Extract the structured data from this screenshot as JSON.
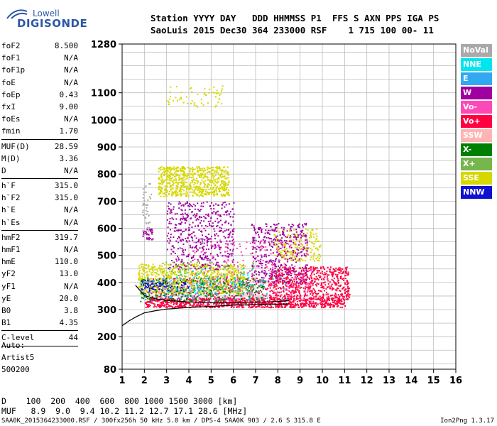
{
  "logo": {
    "brand": "Lowell",
    "name": "DIGISONDE"
  },
  "header": {
    "line1": "Station YYYY DAY   DDD HHMMSS P1  FFS S AXN PPS IGA PS",
    "line2": "SaoLuis 2015 Dec30 364 233000 RSF    1 715 100 00- 11"
  },
  "params_group1": [
    {
      "k": "foF2",
      "v": "8.500"
    },
    {
      "k": "foF1",
      "v": "N/A"
    },
    {
      "k": "foF1p",
      "v": "N/A"
    },
    {
      "k": "foE",
      "v": "N/A"
    },
    {
      "k": "foEp",
      "v": "0.43"
    },
    {
      "k": "fxI",
      "v": "9.00"
    },
    {
      "k": "foEs",
      "v": "N/A"
    },
    {
      "k": "fmin",
      "v": "1.70"
    }
  ],
  "params_group2": [
    {
      "k": "MUF(D)",
      "v": "28.59"
    },
    {
      "k": "M(D)",
      "v": "3.36"
    },
    {
      "k": "D",
      "v": "N/A"
    }
  ],
  "params_group3": [
    {
      "k": "h`F",
      "v": "315.0"
    },
    {
      "k": "h`F2",
      "v": "315.0"
    },
    {
      "k": "h`E",
      "v": "N/A"
    },
    {
      "k": "h`Es",
      "v": "N/A"
    }
  ],
  "params_group4": [
    {
      "k": "hmF2",
      "v": "319.7"
    },
    {
      "k": "hmF1",
      "v": "N/A"
    },
    {
      "k": "hmE",
      "v": "110.0"
    },
    {
      "k": "yF2",
      "v": "13.0"
    },
    {
      "k": "yF1",
      "v": "N/A"
    },
    {
      "k": "yE",
      "v": "20.0"
    },
    {
      "k": "B0",
      "v": "3.8"
    },
    {
      "k": "B1",
      "v": "4.35"
    }
  ],
  "params_group5": [
    {
      "k": "C-level",
      "v": "44"
    }
  ],
  "auto": {
    "l1": "Auto:",
    "l2": "Artist5",
    "l3": "500200"
  },
  "legend": [
    {
      "label": "NoVal",
      "color": "#a9a9a9"
    },
    {
      "label": "NNE",
      "color": "#00e5ef"
    },
    {
      "label": "E",
      "color": "#32a8f0"
    },
    {
      "label": "W",
      "color": "#a000a0"
    },
    {
      "label": "Vo-",
      "color": "#ff48b8"
    },
    {
      "label": "Vo+",
      "color": "#ff0040"
    },
    {
      "label": "SSW",
      "color": "#ffb4b4"
    },
    {
      "label": "X-",
      "color": "#008000"
    },
    {
      "label": "X+",
      "color": "#76b64c"
    },
    {
      "label": "SSE",
      "color": "#d7d700"
    },
    {
      "label": "NNW",
      "color": "#1010d0"
    }
  ],
  "mufline": {
    "d_line": "D    100  200  400  600  800 1000 1500 3000 [km]",
    "muf_line": "MUF   8.9  9.0  9.4 10.2 11.2 12.7 17.1 28.6 [MHz]"
  },
  "footer": {
    "left": "SAA0K_2015364233000.RSF / 300fx256h 50 kHz 5.0 km / DPS-4 SAA0K 903 / 2.6 S 315.8 E",
    "right": "Ion2Png 1.3.17"
  },
  "chart_data": {
    "type": "scatter",
    "xlim": [
      1,
      16
    ],
    "ylim": [
      80,
      1280
    ],
    "xticks": [
      1,
      2,
      3,
      4,
      5,
      6,
      7,
      8,
      9,
      10,
      11,
      12,
      13,
      14,
      15,
      16
    ],
    "yticks": [
      80,
      200,
      300,
      400,
      500,
      600,
      700,
      800,
      900,
      1000,
      1100,
      1280
    ],
    "grid": true,
    "regions": [
      {
        "color": "#ff0040",
        "x": [
          2.0,
          11.0
        ],
        "y": [
          310,
          345
        ],
        "n": 900
      },
      {
        "color": "#ff0040",
        "x": [
          7.6,
          11.2
        ],
        "y": [
          340,
          460
        ],
        "n": 600
      },
      {
        "color": "#ff0040",
        "x": [
          2.0,
          9.0
        ],
        "y": [
          340,
          420
        ],
        "n": 300
      },
      {
        "color": "#d7d700",
        "x": [
          1.7,
          6.5
        ],
        "y": [
          360,
          470
        ],
        "n": 800
      },
      {
        "color": "#d7d700",
        "x": [
          2.6,
          5.8
        ],
        "y": [
          720,
          830
        ],
        "n": 700
      },
      {
        "color": "#d7d700",
        "x": [
          3.0,
          5.6
        ],
        "y": [
          1050,
          1130
        ],
        "n": 60
      },
      {
        "color": "#d7d700",
        "x": [
          7.8,
          9.9
        ],
        "y": [
          480,
          600
        ],
        "n": 200
      },
      {
        "color": "#a000a0",
        "x": [
          3.0,
          6.0
        ],
        "y": [
          450,
          700
        ],
        "n": 500
      },
      {
        "color": "#a000a0",
        "x": [
          6.8,
          9.3
        ],
        "y": [
          400,
          620
        ],
        "n": 400
      },
      {
        "color": "#a000a0",
        "x": [
          1.9,
          2.4
        ],
        "y": [
          560,
          600
        ],
        "n": 30
      },
      {
        "color": "#008000",
        "x": [
          1.8,
          7.4
        ],
        "y": [
          330,
          420
        ],
        "n": 300
      },
      {
        "color": "#32a8f0",
        "x": [
          1.8,
          7.5
        ],
        "y": [
          330,
          420
        ],
        "n": 150
      },
      {
        "color": "#1010d0",
        "x": [
          1.8,
          4.0
        ],
        "y": [
          370,
          410
        ],
        "n": 80
      },
      {
        "color": "#ff48b8",
        "x": [
          4.0,
          9.5
        ],
        "y": [
          330,
          560
        ],
        "n": 250
      },
      {
        "color": "#00e5ef",
        "x": [
          3.0,
          8.5
        ],
        "y": [
          340,
          460
        ],
        "n": 80
      },
      {
        "color": "#ffb4b4",
        "x": [
          2.0,
          8.0
        ],
        "y": [
          340,
          420
        ],
        "n": 60
      },
      {
        "color": "#76b64c",
        "x": [
          2.6,
          7.0
        ],
        "y": [
          360,
          480
        ],
        "n": 150
      },
      {
        "color": "#a9a9a9",
        "x": [
          1.9,
          2.3
        ],
        "y": [
          580,
          780
        ],
        "n": 40
      }
    ],
    "profile_curve": {
      "x": [
        1.0,
        1.3,
        1.6,
        2.0,
        2.5,
        3.0,
        3.5,
        4.0,
        5.0,
        6.0,
        7.0,
        8.0,
        8.5
      ],
      "y": [
        240,
        258,
        272,
        288,
        296,
        302,
        305,
        308,
        312,
        316,
        319,
        320,
        321
      ]
    },
    "trace_curve": {
      "x": [
        1.6,
        2.0,
        2.5,
        3.0,
        4.0,
        5.0,
        6.0,
        7.0,
        8.0,
        8.5
      ],
      "y": [
        390,
        352,
        340,
        334,
        328,
        326,
        326,
        327,
        330,
        333
      ]
    }
  }
}
